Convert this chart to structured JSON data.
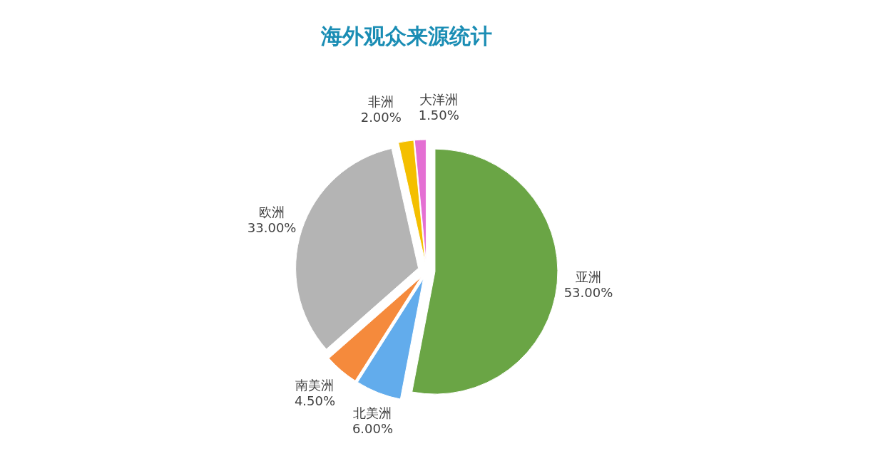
{
  "chart_data": {
    "type": "pie",
    "title": "海外观众来源统计",
    "categories": [
      "亚洲",
      "北美洲",
      "南美洲",
      "欧洲",
      "非洲",
      "大洋洲"
    ],
    "values": [
      53,
      6,
      4.5,
      33,
      2,
      1.5
    ],
    "colors": [
      "#6aa545",
      "#62acec",
      "#f58a3c",
      "#b4b4b4",
      "#f4bf00",
      "#e46fd3"
    ],
    "value_labels": [
      "53.00%",
      "6.00%",
      "4.50%",
      "33.00%",
      "2.00%",
      "1.50%"
    ]
  }
}
